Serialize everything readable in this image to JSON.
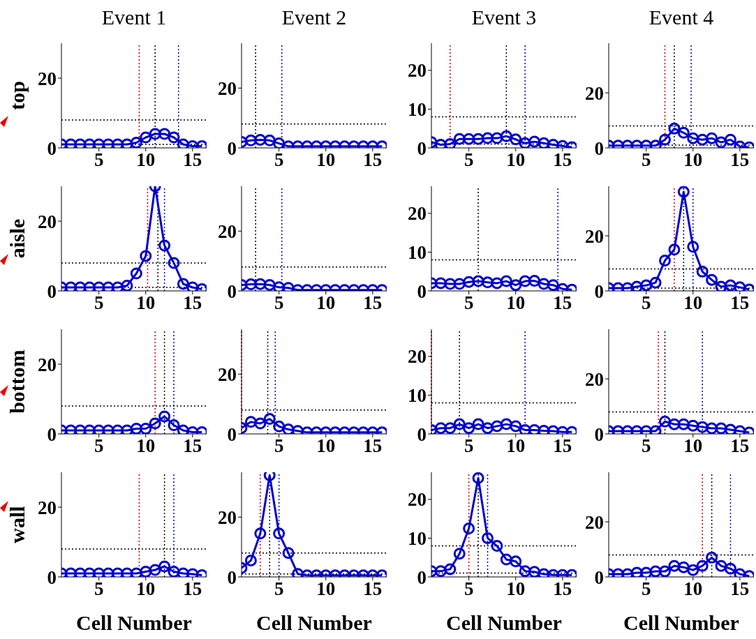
{
  "chart_data": [
    {
      "type": "line",
      "title": "Event 1",
      "ylabel": "top",
      "x": [
        1,
        2,
        3,
        4,
        5,
        6,
        7,
        8,
        9,
        10,
        11,
        12,
        13,
        14,
        15,
        16
      ],
      "values": [
        1,
        1,
        1,
        1,
        1,
        1,
        1,
        1,
        1.5,
        3,
        4,
        4,
        3,
        1,
        0.5,
        0.5
      ],
      "color": "#0000cc",
      "marker": "circle",
      "line_style": "solid",
      "xlim": [
        1,
        16.5
      ],
      "xticks": [
        5,
        10,
        15
      ],
      "ylim": [
        0,
        30
      ],
      "yticks": [
        0,
        20
      ],
      "ref_lines": [
        {
          "axis": "x",
          "value": 9.3,
          "color": "#cc0000",
          "line_style": "dotted"
        },
        {
          "axis": "x",
          "value": 11,
          "color": "#000000",
          "line_style": "dotted"
        },
        {
          "axis": "x",
          "value": 13.5,
          "color": "#0000aa",
          "line_style": "dotted"
        },
        {
          "axis": "y",
          "value": 8,
          "color": "#000000",
          "line_style": "dotted"
        },
        {
          "axis": "y",
          "value": 1,
          "color": "#000000",
          "line_style": "dotted"
        }
      ]
    },
    {
      "type": "line",
      "title": "Event 2",
      "x": [
        1,
        2,
        3,
        4,
        5,
        6,
        7,
        8,
        9,
        10,
        11,
        12,
        13,
        14,
        15,
        16
      ],
      "values": [
        2,
        2.5,
        2.7,
        2.5,
        1.5,
        0.5,
        0.5,
        0.5,
        0.5,
        0.5,
        0.5,
        0.5,
        0.5,
        0.5,
        0.5,
        0.5
      ],
      "color": "#0000cc",
      "marker": "circle",
      "line_style": "solid",
      "xlim": [
        1,
        16.5
      ],
      "xticks": [
        5,
        10,
        15
      ],
      "ylim": [
        0,
        35
      ],
      "yticks": [
        0,
        20
      ],
      "ref_lines": [
        {
          "axis": "x",
          "value": 2.5,
          "color": "#000000",
          "line_style": "dotted"
        },
        {
          "axis": "x",
          "value": 5.3,
          "color": "#0000aa",
          "line_style": "dotted"
        },
        {
          "axis": "y",
          "value": 8,
          "color": "#000000",
          "line_style": "dotted"
        }
      ]
    },
    {
      "type": "line",
      "title": "Event 3",
      "x": [
        1,
        2,
        3,
        4,
        5,
        6,
        7,
        8,
        9,
        10,
        11,
        12,
        13,
        14,
        15,
        16
      ],
      "values": [
        1.5,
        0.8,
        1,
        2.3,
        2.3,
        2.3,
        2.5,
        2.5,
        3,
        2.2,
        1.2,
        1.6,
        1.2,
        0.8,
        0.5,
        0.2
      ],
      "color": "#0000cc",
      "marker": "circle",
      "line_style": "solid",
      "xlim": [
        1,
        16.5
      ],
      "xticks": [
        5,
        10,
        15
      ],
      "ylim": [
        0,
        27
      ],
      "yticks": [
        0,
        10,
        20
      ],
      "ref_lines": [
        {
          "axis": "x",
          "value": 3,
          "color": "#cc0000",
          "line_style": "dotted"
        },
        {
          "axis": "x",
          "value": 9,
          "color": "#000000",
          "line_style": "dotted"
        },
        {
          "axis": "x",
          "value": 11,
          "color": "#0000aa",
          "line_style": "dotted"
        },
        {
          "axis": "y",
          "value": 8,
          "color": "#000000",
          "line_style": "dotted"
        },
        {
          "axis": "y",
          "value": 1,
          "color": "#000000",
          "line_style": "dotted"
        }
      ]
    },
    {
      "type": "line",
      "title": "Event 4",
      "x": [
        1,
        2,
        3,
        4,
        5,
        6,
        7,
        8,
        9,
        10,
        11,
        12,
        13,
        14,
        15,
        16
      ],
      "values": [
        0.8,
        0.8,
        0.8,
        0.8,
        0.8,
        0.8,
        3,
        7,
        5.5,
        3.5,
        3,
        3.5,
        2,
        3,
        0.5,
        0.2
      ],
      "color": "#0000cc",
      "marker": "circle",
      "line_style": "solid",
      "xlim": [
        1,
        16.5
      ],
      "xticks": [
        5,
        10,
        15
      ],
      "ylim": [
        0,
        38
      ],
      "yticks": [
        0,
        20
      ],
      "ref_lines": [
        {
          "axis": "x",
          "value": 7,
          "color": "#cc0000",
          "line_style": "dotted"
        },
        {
          "axis": "x",
          "value": 8,
          "color": "#000000",
          "line_style": "dotted"
        },
        {
          "axis": "x",
          "value": 9.8,
          "color": "#0000aa",
          "line_style": "dotted"
        },
        {
          "axis": "y",
          "value": 8,
          "color": "#000000",
          "line_style": "dotted"
        },
        {
          "axis": "y",
          "value": 1,
          "color": "#000000",
          "line_style": "dotted"
        }
      ]
    },
    {
      "type": "line",
      "ylabel": "aisle",
      "x": [
        1,
        2,
        3,
        4,
        5,
        6,
        7,
        8,
        9,
        10,
        11,
        12,
        13,
        14,
        15,
        16
      ],
      "values": [
        1,
        1,
        1,
        1,
        1,
        1,
        1,
        1.5,
        5,
        10,
        30,
        13,
        8,
        2,
        1,
        0.5
      ],
      "color": "#0000cc",
      "marker": "circle",
      "line_style": "solid",
      "xlim": [
        1,
        16.5
      ],
      "xticks": [
        5,
        10,
        15
      ],
      "ylim": [
        0,
        30
      ],
      "yticks": [
        0,
        20
      ],
      "ref_lines": [
        {
          "axis": "x",
          "value": 10.2,
          "color": "#cc0000",
          "line_style": "dotted"
        },
        {
          "axis": "x",
          "value": 11.3,
          "color": "#000000",
          "line_style": "dotted"
        },
        {
          "axis": "x",
          "value": 12,
          "color": "#0000aa",
          "line_style": "dotted"
        },
        {
          "axis": "y",
          "value": 8,
          "color": "#000000",
          "line_style": "dotted"
        },
        {
          "axis": "y",
          "value": 1,
          "color": "#000000",
          "line_style": "dotted"
        }
      ]
    },
    {
      "type": "line",
      "x": [
        1,
        2,
        3,
        4,
        5,
        6,
        7,
        8,
        9,
        10,
        11,
        12,
        13,
        14,
        15,
        16
      ],
      "values": [
        2,
        2.2,
        2.3,
        2,
        1.2,
        1,
        0.3,
        0.3,
        0.3,
        0.3,
        0.3,
        0.3,
        0.3,
        0.3,
        0.3,
        0.3
      ],
      "color": "#0000cc",
      "marker": "circle",
      "line_style": "solid",
      "xlim": [
        1,
        16.5
      ],
      "xticks": [
        5,
        10,
        15
      ],
      "ylim": [
        0,
        35
      ],
      "yticks": [
        0,
        20
      ],
      "ref_lines": [
        {
          "axis": "x",
          "value": 2.5,
          "color": "#000000",
          "line_style": "dotted"
        },
        {
          "axis": "x",
          "value": 5.3,
          "color": "#0000aa",
          "line_style": "dotted"
        },
        {
          "axis": "y",
          "value": 8,
          "color": "#000000",
          "line_style": "dotted"
        }
      ]
    },
    {
      "type": "line",
      "x": [
        1,
        2,
        3,
        4,
        5,
        6,
        7,
        8,
        9,
        10,
        11,
        12,
        13,
        14,
        15,
        16
      ],
      "values": [
        2,
        2,
        1.8,
        1.8,
        2.3,
        2.5,
        2.2,
        2,
        2.5,
        1.5,
        2.5,
        2.6,
        1.8,
        1.5,
        0.5,
        0.3
      ],
      "color": "#0000cc",
      "marker": "circle",
      "line_style": "solid",
      "xlim": [
        1,
        16.5
      ],
      "xticks": [
        5,
        10,
        15
      ],
      "ylim": [
        0,
        27
      ],
      "yticks": [
        0,
        10,
        20
      ],
      "ref_lines": [
        {
          "axis": "x",
          "value": 6,
          "color": "#000000",
          "line_style": "dotted"
        },
        {
          "axis": "x",
          "value": 14.5,
          "color": "#0000aa",
          "line_style": "dotted"
        },
        {
          "axis": "y",
          "value": 8,
          "color": "#000000",
          "line_style": "dotted"
        }
      ]
    },
    {
      "type": "line",
      "x": [
        1,
        2,
        3,
        4,
        5,
        6,
        7,
        8,
        9,
        10,
        11,
        12,
        13,
        14,
        15,
        16
      ],
      "values": [
        1,
        1,
        1,
        1.5,
        2,
        3,
        11,
        15,
        36,
        16,
        7,
        4,
        1.5,
        2,
        1.3,
        0.5
      ],
      "color": "#0000cc",
      "marker": "circle",
      "line_style": "solid",
      "xlim": [
        1,
        16.5
      ],
      "xticks": [
        5,
        10,
        15
      ],
      "ylim": [
        0,
        38
      ],
      "yticks": [
        0,
        20
      ],
      "ref_lines": [
        {
          "axis": "x",
          "value": 8,
          "color": "#cc0000",
          "line_style": "dotted"
        },
        {
          "axis": "x",
          "value": 9,
          "color": "#000000",
          "line_style": "dotted"
        },
        {
          "axis": "x",
          "value": 10,
          "color": "#0000aa",
          "line_style": "dotted"
        },
        {
          "axis": "y",
          "value": 8,
          "color": "#000000",
          "line_style": "dotted"
        },
        {
          "axis": "y",
          "value": 1,
          "color": "#000000",
          "line_style": "dotted"
        }
      ]
    },
    {
      "type": "line",
      "ylabel": "bottom",
      "x": [
        1,
        2,
        3,
        4,
        5,
        6,
        7,
        8,
        9,
        10,
        11,
        12,
        13,
        14,
        15,
        16
      ],
      "values": [
        1,
        1,
        1,
        1,
        1,
        1,
        1,
        1,
        1.5,
        1.5,
        3,
        5,
        2.5,
        1,
        0.5,
        0.5
      ],
      "color": "#0000cc",
      "marker": "circle",
      "line_style": "solid",
      "xlim": [
        1,
        16.5
      ],
      "xticks": [
        5,
        10,
        15
      ],
      "ylim": [
        0,
        30
      ],
      "yticks": [
        0,
        20
      ],
      "ref_lines": [
        {
          "axis": "x",
          "value": 11,
          "color": "#cc0000",
          "line_style": "dotted"
        },
        {
          "axis": "x",
          "value": 12,
          "color": "#000000",
          "line_style": "dotted"
        },
        {
          "axis": "x",
          "value": 13,
          "color": "#0000aa",
          "line_style": "dotted"
        },
        {
          "axis": "y",
          "value": 8,
          "color": "#000000",
          "line_style": "dotted"
        }
      ]
    },
    {
      "type": "line",
      "x": [
        1,
        2,
        3,
        4,
        5,
        6,
        7,
        8,
        9,
        10,
        11,
        12,
        13,
        14,
        15,
        16
      ],
      "values": [
        2,
        4,
        3.5,
        5,
        2.5,
        1.5,
        1,
        0.5,
        0.5,
        0.5,
        0.5,
        0.5,
        0.5,
        0.5,
        0.5,
        0.5
      ],
      "color": "#0000cc",
      "marker": "circle",
      "line_style": "solid",
      "xlim": [
        1,
        16.5
      ],
      "xticks": [
        5,
        10,
        15
      ],
      "ylim": [
        0,
        35
      ],
      "yticks": [
        0,
        20
      ],
      "ref_lines": [
        {
          "axis": "x",
          "value": 1,
          "color": "#cc0000",
          "line_style": "dotted"
        },
        {
          "axis": "x",
          "value": 3.8,
          "color": "#000000",
          "line_style": "dotted"
        },
        {
          "axis": "x",
          "value": 4.6,
          "color": "#0000aa",
          "line_style": "dotted"
        },
        {
          "axis": "y",
          "value": 8,
          "color": "#000000",
          "line_style": "dotted"
        }
      ]
    },
    {
      "type": "line",
      "x": [
        1,
        2,
        3,
        4,
        5,
        6,
        7,
        8,
        9,
        10,
        11,
        12,
        13,
        14,
        15,
        16
      ],
      "values": [
        1,
        1.5,
        1.5,
        2.5,
        1.5,
        2.5,
        1.5,
        2,
        2.5,
        2,
        1,
        1,
        0.8,
        0.7,
        0.5,
        0.5
      ],
      "color": "#0000cc",
      "marker": "circle",
      "line_style": "solid",
      "xlim": [
        1,
        16.5
      ],
      "xticks": [
        5,
        10,
        15
      ],
      "ylim": [
        0,
        27
      ],
      "yticks": [
        0,
        10,
        20
      ],
      "ref_lines": [
        {
          "axis": "x",
          "value": 1,
          "color": "#cc0000",
          "line_style": "dotted"
        },
        {
          "axis": "x",
          "value": 4,
          "color": "#000000",
          "line_style": "dotted"
        },
        {
          "axis": "x",
          "value": 11,
          "color": "#0000aa",
          "line_style": "dotted"
        },
        {
          "axis": "y",
          "value": 8,
          "color": "#000000",
          "line_style": "dotted"
        }
      ]
    },
    {
      "type": "line",
      "x": [
        1,
        2,
        3,
        4,
        5,
        6,
        7,
        8,
        9,
        10,
        11,
        12,
        13,
        14,
        15,
        16
      ],
      "values": [
        1,
        1,
        1,
        1,
        1,
        1,
        4.5,
        3.5,
        3.5,
        3,
        2.5,
        2,
        2,
        1.5,
        1,
        0.5
      ],
      "color": "#0000cc",
      "marker": "circle",
      "line_style": "solid",
      "xlim": [
        1,
        16.5
      ],
      "xticks": [
        5,
        10,
        15
      ],
      "ylim": [
        0,
        38
      ],
      "yticks": [
        0,
        20
      ],
      "ref_lines": [
        {
          "axis": "x",
          "value": 6.3,
          "color": "#cc0000",
          "line_style": "dotted"
        },
        {
          "axis": "x",
          "value": 7,
          "color": "#000000",
          "line_style": "dotted"
        },
        {
          "axis": "x",
          "value": 11,
          "color": "#0000aa",
          "line_style": "dotted"
        },
        {
          "axis": "y",
          "value": 8,
          "color": "#000000",
          "line_style": "dotted"
        }
      ]
    },
    {
      "type": "line",
      "ylabel": "wall",
      "xlabel": "Cell Number",
      "x": [
        1,
        2,
        3,
        4,
        5,
        6,
        7,
        8,
        9,
        10,
        11,
        12,
        13,
        14,
        15,
        16
      ],
      "values": [
        1,
        1,
        1,
        1,
        1,
        1,
        1,
        1,
        1,
        1.5,
        2,
        3,
        1.5,
        1,
        0.8,
        0.5
      ],
      "color": "#0000cc",
      "marker": "circle",
      "line_style": "solid",
      "xlim": [
        1,
        16.5
      ],
      "xticks": [
        5,
        10,
        15
      ],
      "ylim": [
        0,
        30
      ],
      "yticks": [
        0,
        20
      ],
      "ref_lines": [
        {
          "axis": "x",
          "value": 9.3,
          "color": "#cc0000",
          "line_style": "dotted"
        },
        {
          "axis": "x",
          "value": 12,
          "color": "#000000",
          "line_style": "dotted"
        },
        {
          "axis": "x",
          "value": 13,
          "color": "#0000aa",
          "line_style": "dotted"
        },
        {
          "axis": "y",
          "value": 8,
          "color": "#000000",
          "line_style": "dotted"
        }
      ]
    },
    {
      "type": "line",
      "xlabel": "Cell Number",
      "x": [
        1,
        2,
        3,
        4,
        5,
        6,
        7,
        8,
        9,
        10,
        11,
        12,
        13,
        14,
        15,
        16
      ],
      "values": [
        3,
        5.5,
        14.5,
        34,
        14.5,
        8,
        1,
        0.5,
        0.5,
        0.5,
        0.5,
        0.5,
        0.5,
        0.5,
        0.5,
        0.5
      ],
      "color": "#0000cc",
      "marker": "circle",
      "line_style": "solid",
      "xlim": [
        1,
        16.5
      ],
      "xticks": [
        5,
        10,
        15
      ],
      "ylim": [
        0,
        35
      ],
      "yticks": [
        0,
        20
      ],
      "ref_lines": [
        {
          "axis": "x",
          "value": 3,
          "color": "#cc0000",
          "line_style": "dotted"
        },
        {
          "axis": "x",
          "value": 4,
          "color": "#000000",
          "line_style": "dotted"
        },
        {
          "axis": "x",
          "value": 5,
          "color": "#0000aa",
          "line_style": "dotted"
        },
        {
          "axis": "y",
          "value": 8,
          "color": "#000000",
          "line_style": "dotted"
        },
        {
          "axis": "y",
          "value": 1,
          "color": "#000000",
          "line_style": "dotted"
        }
      ]
    },
    {
      "type": "line",
      "xlabel": "Cell Number",
      "x": [
        1,
        2,
        3,
        4,
        5,
        6,
        7,
        8,
        9,
        10,
        11,
        12,
        13,
        14,
        15,
        16
      ],
      "values": [
        1.5,
        1.5,
        2,
        6,
        12.5,
        25.5,
        10,
        8,
        4.5,
        4,
        1.5,
        1.3,
        0.7,
        0.5,
        0.5,
        0.5
      ],
      "color": "#0000cc",
      "marker": "circle",
      "line_style": "solid",
      "xlim": [
        1,
        16.5
      ],
      "xticks": [
        5,
        10,
        15
      ],
      "ylim": [
        0,
        27
      ],
      "yticks": [
        0,
        10,
        20
      ],
      "ref_lines": [
        {
          "axis": "x",
          "value": 5,
          "color": "#cc0000",
          "line_style": "dotted"
        },
        {
          "axis": "x",
          "value": 6,
          "color": "#000000",
          "line_style": "dotted"
        },
        {
          "axis": "x",
          "value": 7,
          "color": "#0000aa",
          "line_style": "dotted"
        },
        {
          "axis": "y",
          "value": 8,
          "color": "#000000",
          "line_style": "dotted"
        },
        {
          "axis": "y",
          "value": 1,
          "color": "#000000",
          "line_style": "dotted"
        }
      ]
    },
    {
      "type": "line",
      "xlabel": "Cell Number",
      "x": [
        1,
        2,
        3,
        4,
        5,
        6,
        7,
        8,
        9,
        10,
        11,
        12,
        13,
        14,
        15,
        16
      ],
      "values": [
        1,
        1,
        1,
        1.5,
        1.5,
        2,
        2,
        4,
        3.5,
        2.5,
        4,
        7,
        4,
        3,
        1,
        0.3
      ],
      "color": "#0000cc",
      "marker": "circle",
      "line_style": "solid",
      "xlim": [
        1,
        16.5
      ],
      "xticks": [
        5,
        10,
        15
      ],
      "ylim": [
        0,
        38
      ],
      "yticks": [
        0,
        20
      ],
      "ref_lines": [
        {
          "axis": "x",
          "value": 11,
          "color": "#cc0000",
          "line_style": "dotted"
        },
        {
          "axis": "x",
          "value": 12,
          "color": "#000000",
          "line_style": "dotted"
        },
        {
          "axis": "x",
          "value": 14,
          "color": "#0000aa",
          "line_style": "dotted"
        },
        {
          "axis": "y",
          "value": 8,
          "color": "#000000",
          "line_style": "dotted"
        }
      ]
    }
  ]
}
